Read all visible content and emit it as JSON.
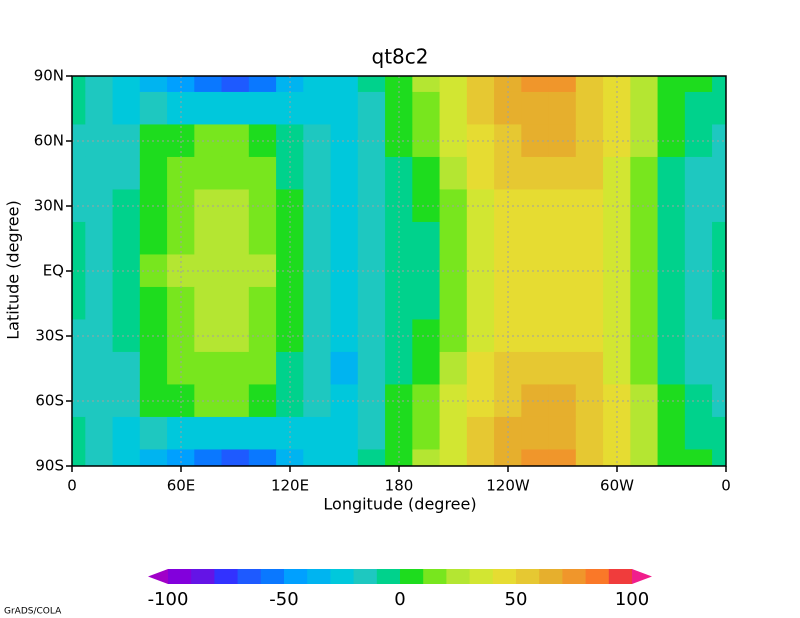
{
  "chart_data": {
    "type": "contour",
    "title": "qt8c2",
    "x_label": "Longitude (degree)",
    "y_label": "Latitude (degree)",
    "footer": "GrADS/COLA",
    "x": [
      0,
      15,
      30,
      45,
      60,
      75,
      90,
      105,
      120,
      135,
      150,
      165,
      180,
      195,
      210,
      225,
      240,
      255,
      270,
      285,
      300,
      315,
      330,
      345,
      360
    ],
    "y": [
      90,
      75,
      60,
      45,
      30,
      15,
      0,
      -15,
      -30,
      -45,
      -60,
      -75,
      -90
    ],
    "values": [
      [
        -5,
        -20,
        -30,
        -40,
        -50,
        -60,
        -65,
        -55,
        -40,
        -25,
        -25,
        -10,
        5,
        20,
        35,
        55,
        65,
        75,
        70,
        55,
        40,
        20,
        5,
        0,
        -5
      ],
      [
        -10,
        -18,
        -22,
        -20,
        -22,
        -25,
        -28,
        -25,
        -22,
        -22,
        -25,
        -12,
        3,
        18,
        33,
        50,
        60,
        68,
        65,
        55,
        40,
        20,
        3,
        -5,
        -10
      ],
      [
        -15,
        -15,
        -15,
        0,
        5,
        10,
        10,
        5,
        -5,
        -20,
        -25,
        -15,
        0,
        15,
        30,
        45,
        55,
        60,
        60,
        55,
        40,
        20,
        0,
        -10,
        -15
      ],
      [
        -13,
        -15,
        -12,
        3,
        10,
        15,
        15,
        10,
        -2,
        -18,
        -25,
        -17,
        -3,
        8,
        23,
        40,
        50,
        53,
        53,
        50,
        37,
        17,
        -3,
        -12,
        -13
      ],
      [
        -12,
        -15,
        -8,
        7,
        15,
        20,
        20,
        15,
        2,
        -17,
        -25,
        -18,
        -7,
        2,
        17,
        35,
        45,
        47,
        47,
        45,
        33,
        13,
        -7,
        -13,
        -12
      ],
      [
        -10,
        -15,
        -6,
        9,
        18,
        24,
        24,
        18,
        4,
        -15,
        -25,
        -20,
        -9,
        -3,
        12,
        32,
        42,
        42,
        42,
        42,
        31,
        11,
        -9,
        -15,
        -10
      ],
      [
        -10,
        -15,
        -5,
        10,
        20,
        25,
        25,
        20,
        5,
        -15,
        -25,
        -20,
        -10,
        -5,
        10,
        30,
        40,
        40,
        40,
        40,
        30,
        10,
        -10,
        -15,
        -10
      ],
      [
        -10,
        -15,
        -6,
        9,
        18,
        24,
        24,
        18,
        4,
        -15,
        -25,
        -20,
        -9,
        -3,
        12,
        32,
        42,
        42,
        42,
        42,
        31,
        11,
        -9,
        -15,
        -10
      ],
      [
        -12,
        -15,
        -8,
        7,
        15,
        20,
        20,
        15,
        2,
        -17,
        -25,
        -18,
        -7,
        2,
        17,
        35,
        45,
        47,
        47,
        45,
        33,
        13,
        -7,
        -13,
        -12
      ],
      [
        -13,
        -15,
        -12,
        3,
        10,
        15,
        15,
        10,
        -2,
        -18,
        -32,
        -17,
        -3,
        8,
        23,
        40,
        50,
        53,
        53,
        50,
        37,
        17,
        -3,
        -12,
        -13
      ],
      [
        -15,
        -15,
        -15,
        0,
        5,
        10,
        10,
        5,
        -5,
        -20,
        -25,
        -15,
        0,
        15,
        30,
        45,
        55,
        60,
        60,
        55,
        40,
        20,
        0,
        -10,
        -15
      ],
      [
        -10,
        -18,
        -22,
        -20,
        -22,
        -25,
        -28,
        -25,
        -22,
        -22,
        -25,
        -12,
        3,
        18,
        33,
        50,
        60,
        68,
        65,
        55,
        40,
        20,
        3,
        -5,
        -10
      ],
      [
        -5,
        -20,
        -30,
        -40,
        -50,
        -60,
        -65,
        -55,
        -40,
        -25,
        -25,
        -10,
        5,
        20,
        35,
        55,
        65,
        75,
        70,
        55,
        40,
        20,
        5,
        0,
        -5
      ]
    ],
    "xlim": [
      0,
      360
    ],
    "ylim": [
      -90,
      90
    ],
    "xticks": [
      0,
      {
        "value": 60,
        "label": "60E"
      },
      {
        "value": 120,
        "label": "120E"
      },
      180,
      {
        "value": 240,
        "label": "120W"
      },
      {
        "value": 300,
        "label": "60W"
      },
      {
        "value": 360,
        "label": "0"
      }
    ],
    "yticks": [
      {
        "value": -90,
        "label": "90S"
      },
      {
        "value": -60,
        "label": "60S"
      },
      {
        "value": -30,
        "label": "30S"
      },
      {
        "value": 0,
        "label": "EQ"
      },
      {
        "value": 30,
        "label": "30N"
      },
      {
        "value": 60,
        "label": "60N"
      },
      {
        "value": 90,
        "label": "90N"
      }
    ],
    "grid": true,
    "levels": [
      -100,
      -90,
      -80,
      -70,
      -60,
      -50,
      -40,
      -30,
      -20,
      -10,
      0,
      10,
      20,
      30,
      40,
      50,
      60,
      70,
      80,
      90,
      100
    ],
    "colors": [
      "#a000c8",
      "#8200dc",
      "#6414e6",
      "#3232ff",
      "#1e5aff",
      "#0a78ff",
      "#00a0ff",
      "#00b4f0",
      "#00c8dc",
      "#1ec8c0",
      "#00d28c",
      "#1edc1e",
      "#78e61e",
      "#b4e632",
      "#d2e632",
      "#e6dc32",
      "#e6c832",
      "#e6af2d",
      "#f0962b",
      "#fa7828",
      "#f03c3c",
      "#f01e8c"
    ],
    "colorbar_ticks": [
      -100,
      -50,
      0,
      50,
      100
    ]
  }
}
